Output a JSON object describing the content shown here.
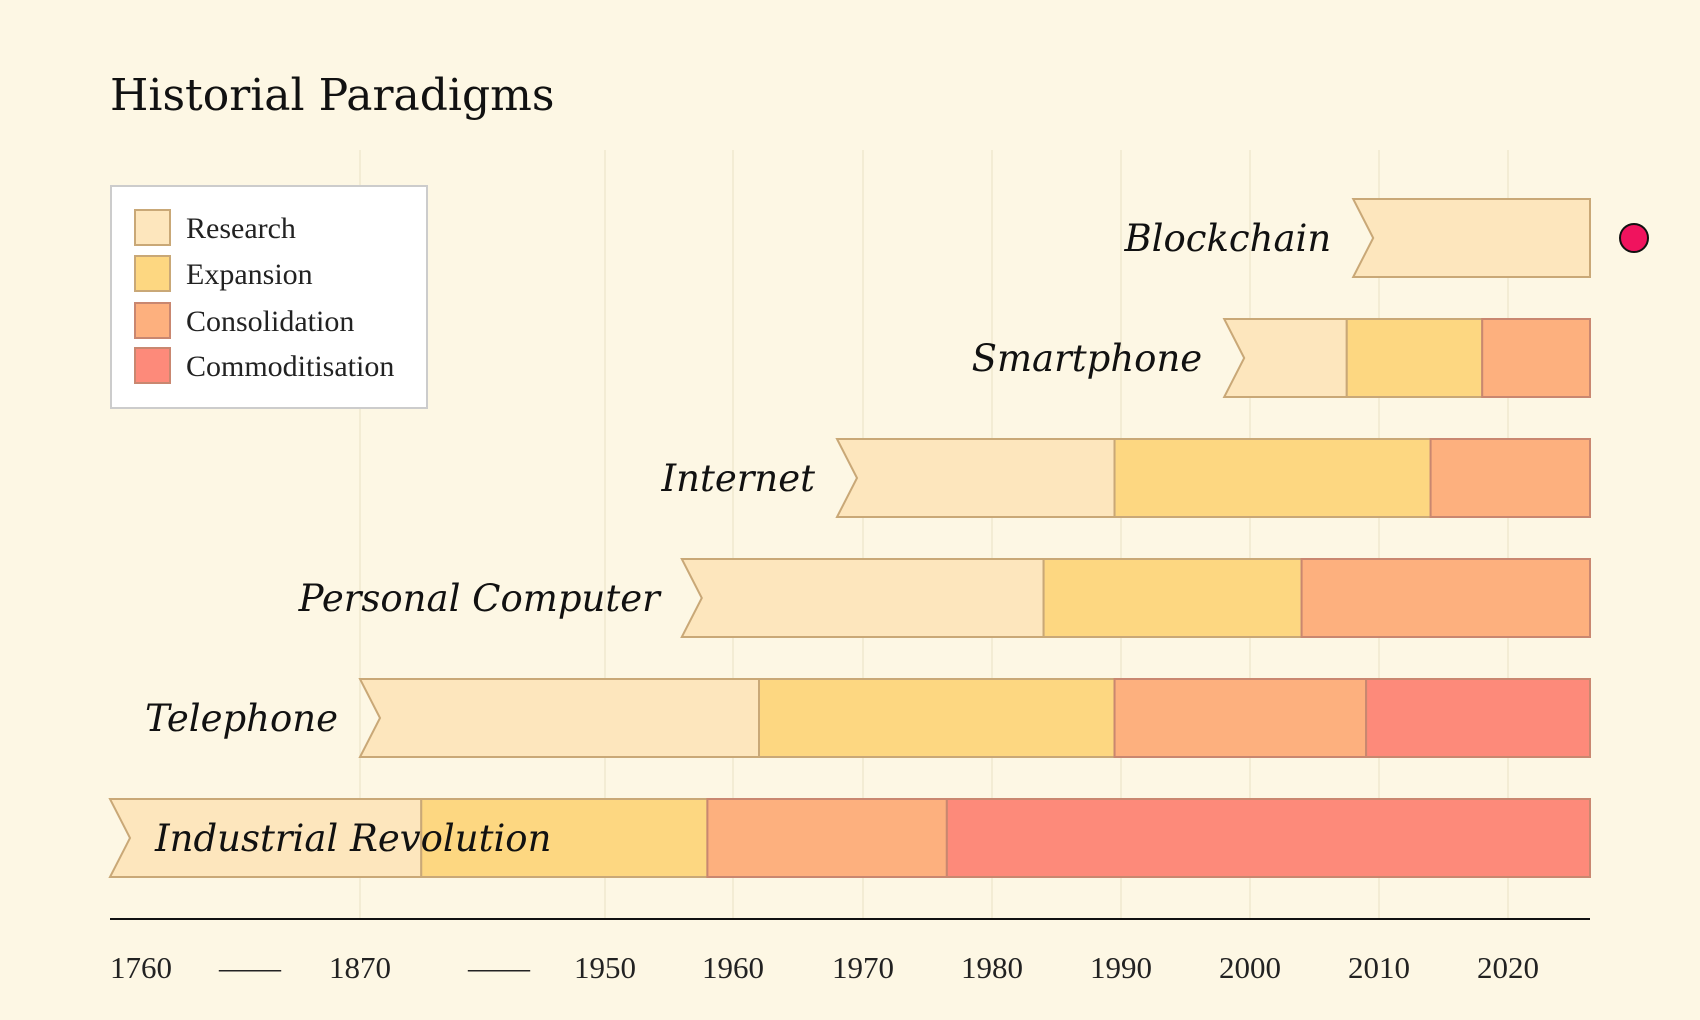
{
  "chart_data": {
    "type": "timeline",
    "title": "Historial Paradigms",
    "axis_ticks": [
      {
        "label": "1760",
        "year": 1760
      },
      {
        "label": "——",
        "year": null
      },
      {
        "label": "1870",
        "year": 1870
      },
      {
        "label": "——",
        "year": null
      },
      {
        "label": "1950",
        "year": 1950
      },
      {
        "label": "1960",
        "year": 1960
      },
      {
        "label": "1970",
        "year": 1970
      },
      {
        "label": "1980",
        "year": 1980
      },
      {
        "label": "1990",
        "year": 1990
      },
      {
        "label": "2000",
        "year": 2000
      },
      {
        "label": "2010",
        "year": 2010
      },
      {
        "label": "2020",
        "year": 2020
      }
    ],
    "end_year": 2026,
    "legend_position": "top-left",
    "phases": [
      {
        "name": "Research",
        "color": "#fde6bd"
      },
      {
        "name": "Expansion",
        "color": "#fdd781"
      },
      {
        "name": "Consolidation",
        "color": "#fdb07e"
      },
      {
        "name": "Commoditisation",
        "color": "#fd8a7a"
      }
    ],
    "marker": {
      "color": "#f0135e",
      "row": "Blockchain"
    },
    "rows": [
      {
        "label": "Blockchain",
        "start": 2008,
        "phase_ends": [
          2026
        ]
      },
      {
        "label": "Smartphone",
        "start": 1998,
        "phase_ends": [
          2007.5,
          2018,
          2026
        ]
      },
      {
        "label": "Internet",
        "start": 1968,
        "phase_ends": [
          1989.5,
          2014,
          2026
        ]
      },
      {
        "label": "Personal Computer",
        "start": 1956,
        "phase_ends": [
          1984,
          2004,
          2026
        ]
      },
      {
        "label": "Telephone",
        "start": 1870,
        "phase_ends": [
          1962,
          1989.5,
          2009,
          2026
        ]
      },
      {
        "label": "Industrial Revolution",
        "start": 1760,
        "phase_ends": [
          1890,
          1958,
          1976.5,
          2026
        ]
      }
    ]
  }
}
